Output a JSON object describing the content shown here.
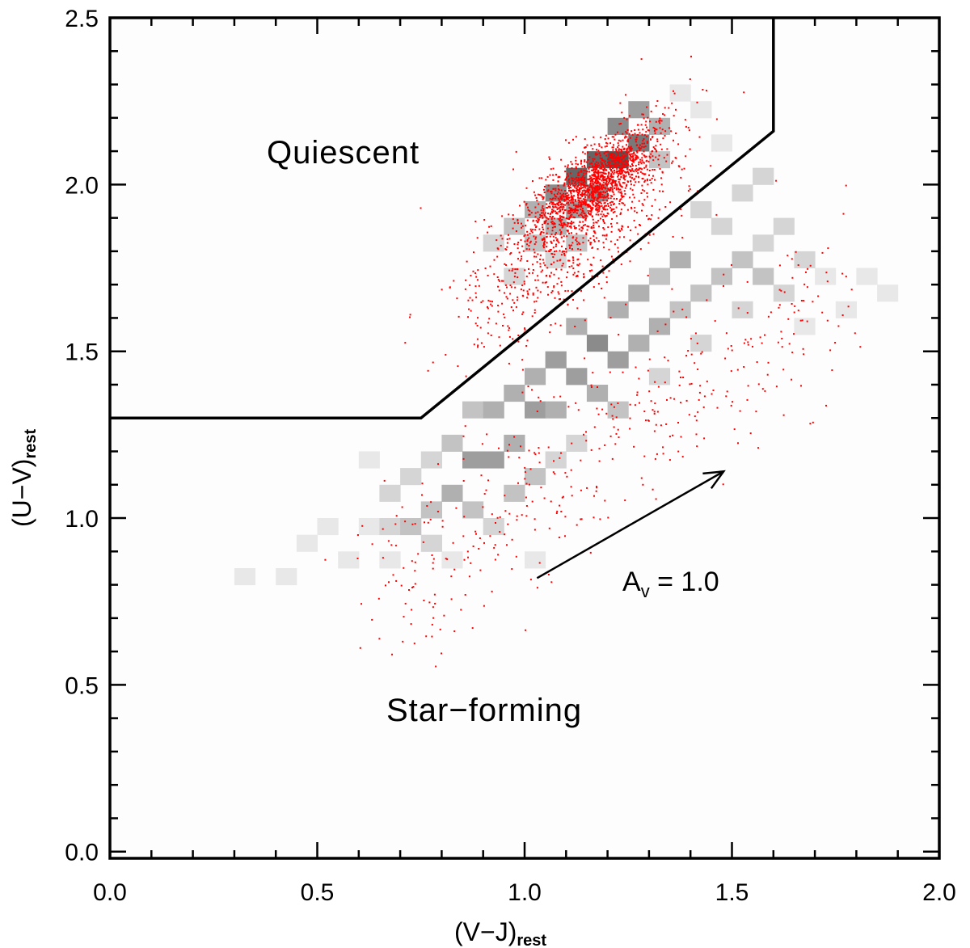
{
  "chart_data": {
    "type": "scatter",
    "title": "",
    "xlabel": "(V−J)",
    "xlabel_sub": "rest",
    "ylabel": "(U−V)",
    "ylabel_sub": "rest",
    "xlim": [
      0.0,
      2.0
    ],
    "ylim": [
      -0.02,
      2.5
    ],
    "xticks": [
      0.0,
      0.5,
      1.0,
      1.5,
      2.0
    ],
    "xtick_labels": [
      "0.0",
      "0.5",
      "1.0",
      "1.5",
      "2.0"
    ],
    "yticks": [
      0.0,
      0.5,
      1.0,
      1.5,
      2.0,
      2.5
    ],
    "ytick_labels": [
      "0.0",
      "0.5",
      "1.0",
      "1.5",
      "2.0",
      "2.5"
    ],
    "region_labels": [
      {
        "text": "Quiescent",
        "x": 0.6,
        "y": 2.05
      },
      {
        "text": "Star−forming",
        "x": 1.05,
        "y": 0.4
      }
    ],
    "selection_boundary": [
      [
        0.0,
        1.3
      ],
      [
        0.75,
        1.3
      ],
      [
        1.6,
        2.16
      ],
      [
        1.6,
        2.5
      ]
    ],
    "reddening_vector": {
      "from": [
        1.03,
        0.82
      ],
      "to": [
        1.48,
        1.14
      ],
      "label": "A",
      "label_sub": "v",
      "label_value": " = 1.0"
    },
    "density_bins": {
      "bin_width": 0.05,
      "bin_height": 0.05,
      "max_count": 10,
      "cells": [
        [
          0.3,
          0.8,
          1
        ],
        [
          0.4,
          0.8,
          1
        ],
        [
          0.45,
          0.9,
          1
        ],
        [
          0.5,
          0.95,
          1
        ],
        [
          0.55,
          0.85,
          1
        ],
        [
          0.6,
          1.15,
          1
        ],
        [
          0.6,
          0.95,
          1
        ],
        [
          0.65,
          1.05,
          2
        ],
        [
          0.65,
          0.95,
          2
        ],
        [
          0.65,
          0.85,
          1
        ],
        [
          0.7,
          1.1,
          2
        ],
        [
          0.7,
          0.95,
          3
        ],
        [
          0.75,
          1.15,
          2
        ],
        [
          0.75,
          1.0,
          3
        ],
        [
          0.75,
          0.9,
          2
        ],
        [
          0.8,
          1.2,
          3
        ],
        [
          0.8,
          1.05,
          4
        ],
        [
          0.8,
          0.85,
          1
        ],
        [
          0.85,
          1.3,
          3
        ],
        [
          0.85,
          1.15,
          5
        ],
        [
          0.85,
          1.0,
          3
        ],
        [
          0.9,
          1.3,
          4
        ],
        [
          0.9,
          1.15,
          5
        ],
        [
          0.9,
          0.95,
          2
        ],
        [
          0.95,
          1.35,
          4
        ],
        [
          0.95,
          1.2,
          4
        ],
        [
          0.95,
          1.05,
          3
        ],
        [
          1.0,
          1.4,
          4
        ],
        [
          1.0,
          1.3,
          5
        ],
        [
          1.0,
          1.1,
          3
        ],
        [
          1.0,
          0.85,
          1
        ],
        [
          1.05,
          1.45,
          5
        ],
        [
          1.05,
          1.3,
          4
        ],
        [
          1.05,
          1.15,
          2
        ],
        [
          1.1,
          1.4,
          5
        ],
        [
          1.1,
          1.55,
          4
        ],
        [
          1.1,
          1.2,
          2
        ],
        [
          1.15,
          1.5,
          6
        ],
        [
          1.15,
          1.35,
          4
        ],
        [
          1.2,
          1.45,
          5
        ],
        [
          1.2,
          1.6,
          4
        ],
        [
          1.2,
          1.3,
          3
        ],
        [
          1.25,
          1.5,
          4
        ],
        [
          1.25,
          1.65,
          4
        ],
        [
          1.3,
          1.55,
          4
        ],
        [
          1.3,
          1.7,
          3
        ],
        [
          1.3,
          1.4,
          2
        ],
        [
          1.35,
          1.6,
          3
        ],
        [
          1.35,
          1.75,
          4
        ],
        [
          1.4,
          1.65,
          3
        ],
        [
          1.4,
          1.5,
          2
        ],
        [
          1.4,
          1.9,
          2
        ],
        [
          1.45,
          1.7,
          3
        ],
        [
          1.45,
          1.85,
          2
        ],
        [
          1.5,
          1.75,
          3
        ],
        [
          1.5,
          1.6,
          2
        ],
        [
          1.5,
          1.95,
          2
        ],
        [
          1.55,
          1.8,
          2
        ],
        [
          1.55,
          1.7,
          3
        ],
        [
          1.6,
          1.85,
          2
        ],
        [
          1.6,
          1.65,
          2
        ],
        [
          1.65,
          1.75,
          2
        ],
        [
          1.65,
          1.55,
          1
        ],
        [
          1.7,
          1.7,
          1
        ],
        [
          1.75,
          1.6,
          1
        ],
        [
          1.8,
          1.7,
          1
        ],
        [
          1.85,
          1.65,
          1
        ],
        [
          1.55,
          2.0,
          2
        ],
        [
          1.45,
          2.1,
          1
        ],
        [
          1.4,
          2.2,
          1
        ],
        [
          1.35,
          2.25,
          1
        ],
        [
          0.95,
          1.85,
          3
        ],
        [
          1.0,
          1.9,
          4
        ],
        [
          1.05,
          1.95,
          6
        ],
        [
          1.05,
          1.85,
          4
        ],
        [
          1.1,
          2.0,
          8
        ],
        [
          1.1,
          1.9,
          5
        ],
        [
          1.15,
          2.05,
          8
        ],
        [
          1.15,
          1.95,
          6
        ],
        [
          1.2,
          2.05,
          9
        ],
        [
          1.2,
          2.15,
          6
        ],
        [
          1.25,
          2.1,
          7
        ],
        [
          1.25,
          2.2,
          5
        ],
        [
          1.3,
          2.15,
          4
        ],
        [
          1.3,
          2.05,
          3
        ],
        [
          1.0,
          1.8,
          3
        ],
        [
          1.1,
          1.8,
          3
        ],
        [
          0.9,
          1.8,
          2
        ],
        [
          0.95,
          1.7,
          2
        ],
        [
          1.05,
          1.75,
          2
        ]
      ]
    },
    "scatter_points": {
      "color": "#ff0000",
      "core_center": [
        1.17,
        2.0
      ],
      "core_count": 1400,
      "halo_count": 800,
      "tail_count": 450
    }
  }
}
